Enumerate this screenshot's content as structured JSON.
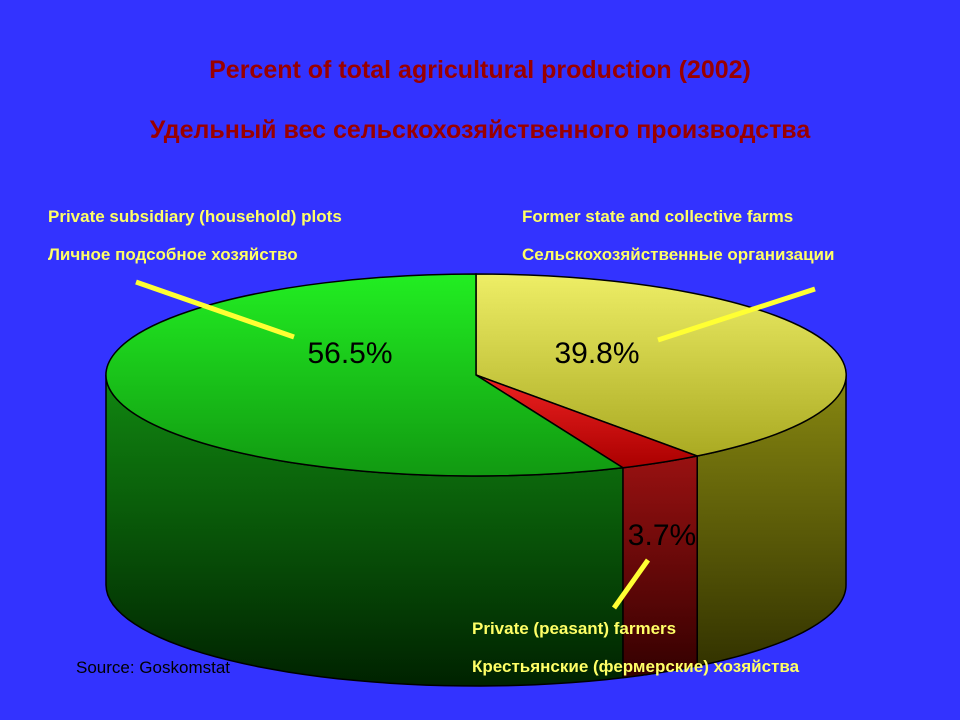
{
  "title_en": "Percent of total agricultural production (2002)",
  "title_ru": "Удельный вес сельскохозяйственного производства",
  "source": "Source: Goskomstat",
  "chart_data": {
    "type": "pie",
    "style": "3d",
    "slices": [
      {
        "value": 56.5,
        "label": "56.5%",
        "name_en": "Private subsidiary (household) plots",
        "name_ru": "Личное подсобное хозяйство",
        "color": "#22dd22"
      },
      {
        "value": 39.8,
        "label": "39.8%",
        "name_en": "Former state and collective farms",
        "name_ru": "Сельскохозяйственные организации",
        "color": "#dddd44"
      },
      {
        "value": 3.7,
        "label": "3.7%",
        "name_en": "Private (peasant) farmers",
        "name_ru": "Крестьянские (фермерские) хозяйства",
        "color": "#dd1111"
      }
    ],
    "colors": {
      "background": "#3333ff",
      "title": "#990000",
      "category_labels": "#ffff66",
      "leader_lines": "#ffff33"
    }
  }
}
